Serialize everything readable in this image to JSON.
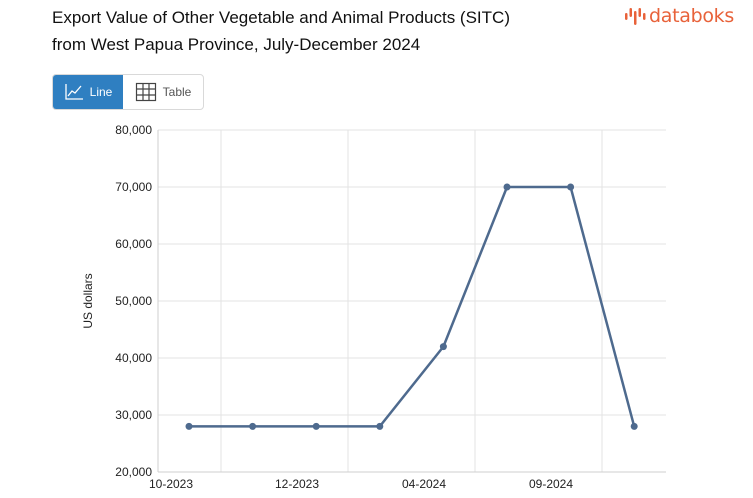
{
  "header": {
    "title_line1": "Export Value of Other Vegetable and Animal Products (SITC)",
    "title_line2": "from West Papua Province, July-December 2024",
    "logo_text": "databoks"
  },
  "toggle": {
    "line_label": "Line",
    "table_label": "Table"
  },
  "colors": {
    "line": "#4e6a8e",
    "accent": "#2f7fc1",
    "logo": "#e8623a",
    "grid": "#e3e3e3"
  },
  "chart_data": {
    "type": "line",
    "title": "Export Value of Other Vegetable and Animal Products (SITC) from West Papua Province, July-December 2024",
    "ylabel": "US dollars",
    "xlabel": "",
    "ylim": [
      20000,
      80000
    ],
    "yticks": [
      20000,
      30000,
      40000,
      50000,
      60000,
      70000,
      80000
    ],
    "ytick_labels": [
      "20,000",
      "30,000",
      "40,000",
      "50,000",
      "60,000",
      "70,000",
      "80,000"
    ],
    "xtick_labels": [
      "10-2023",
      "12-2023",
      "04-2024",
      "09-2024"
    ],
    "grid": true,
    "series": [
      {
        "values": [
          28000,
          28000,
          28000,
          28000,
          42000,
          70000,
          70000,
          28000
        ]
      }
    ]
  }
}
